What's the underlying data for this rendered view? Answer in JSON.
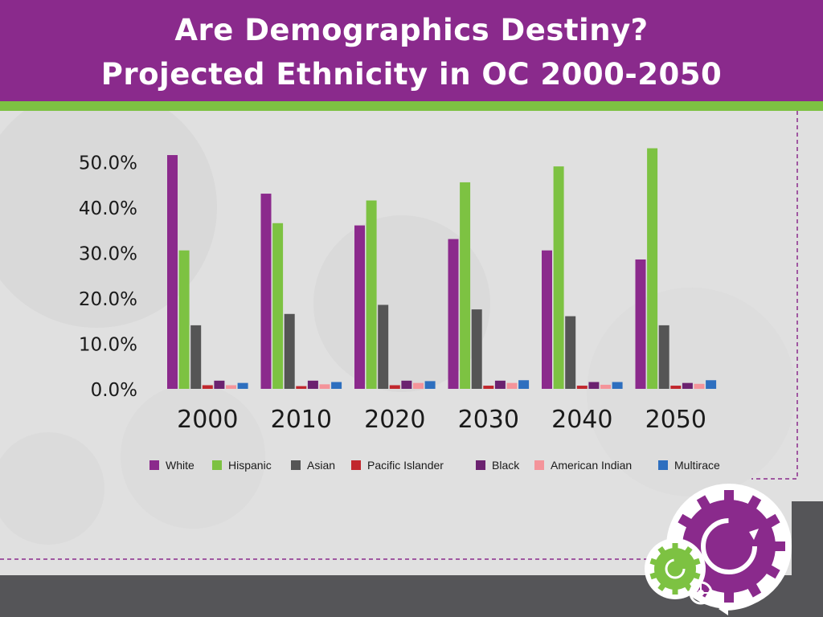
{
  "header": {
    "line1": "Are Demographics Destiny?",
    "line2": "Projected Ethnicity in OC 2000-2050"
  },
  "colors": {
    "header_bg": "#8a2a8c",
    "accent_green": "#7dc242",
    "footer_dark": "#555558"
  },
  "chart_data": {
    "type": "bar",
    "categories": [
      "2000",
      "2010",
      "2020",
      "2030",
      "2040",
      "2050"
    ],
    "yticks": [
      "0.0%",
      "10.0%",
      "20.0%",
      "30.0%",
      "40.0%",
      "50.0%"
    ],
    "ylim": [
      0,
      55
    ],
    "grid": false,
    "legend_position": "bottom",
    "series": [
      {
        "name": "White",
        "color": "#8b2a8c",
        "values": [
          51.5,
          43.0,
          36.0,
          33.0,
          30.5,
          28.5
        ]
      },
      {
        "name": "Hispanic",
        "color": "#7dc242",
        "values": [
          30.5,
          36.5,
          41.5,
          45.5,
          49.0,
          53.0
        ]
      },
      {
        "name": "Asian",
        "color": "#555555",
        "values": [
          14.0,
          16.5,
          18.5,
          17.5,
          16.0,
          14.0
        ]
      },
      {
        "name": "Pacific Islander",
        "color": "#c1272d",
        "values": [
          0.8,
          0.6,
          0.8,
          0.7,
          0.7,
          0.7
        ]
      },
      {
        "name": "Black",
        "color": "#6b2270",
        "values": [
          1.8,
          1.8,
          1.8,
          1.8,
          1.5,
          1.3
        ]
      },
      {
        "name": "American Indian",
        "color": "#f4949a",
        "values": [
          0.8,
          1.0,
          1.3,
          1.3,
          0.9,
          1.1
        ]
      },
      {
        "name": "Multirace",
        "color": "#2e6fbf",
        "values": [
          1.3,
          1.5,
          1.7,
          1.9,
          1.5,
          1.9
        ]
      }
    ]
  },
  "icons": [
    "large-gear-icon",
    "small-gear-icon",
    "tiny-gear-icon"
  ]
}
